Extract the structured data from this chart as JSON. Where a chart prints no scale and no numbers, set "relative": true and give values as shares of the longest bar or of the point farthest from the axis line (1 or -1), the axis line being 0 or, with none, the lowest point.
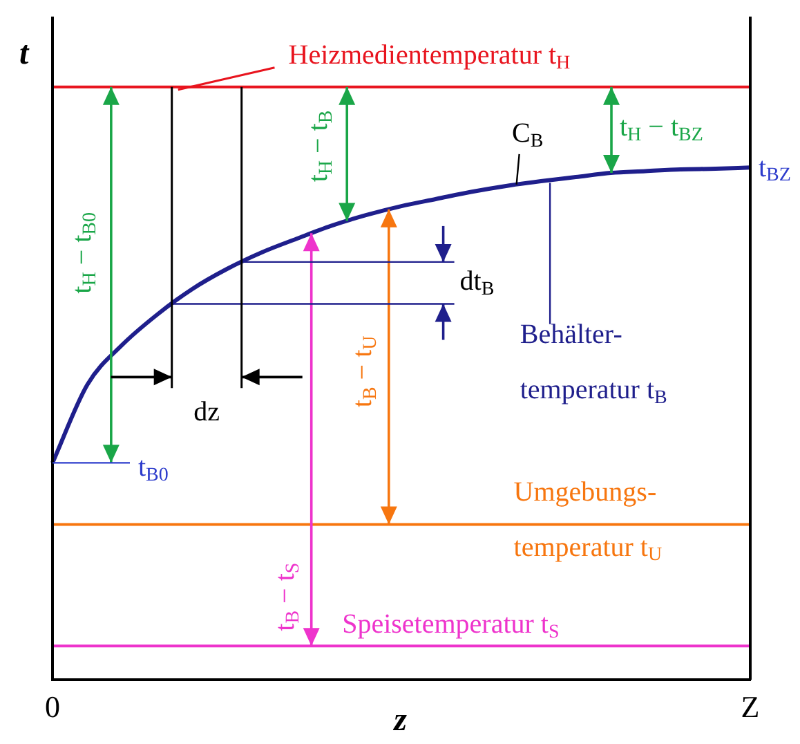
{
  "chart_data": {
    "type": "line",
    "xlabel": "z",
    "ylabel": "t",
    "relative": true,
    "grid": false,
    "marker": "none",
    "line_style": "solid",
    "categories": [
      "0",
      null,
      null,
      null,
      null,
      null,
      null,
      null,
      null,
      null,
      null,
      null,
      null,
      null,
      null,
      null,
      null,
      null,
      null,
      null,
      "Z"
    ],
    "series": [
      {
        "name": "Heizmedientemperatur t$_{H}$",
        "color": "#e8141e",
        "values": [
          1,
          1,
          1,
          1,
          1,
          1,
          1,
          1,
          1,
          1,
          1,
          1,
          1,
          1,
          1,
          1,
          1,
          1,
          1,
          1,
          1
        ]
      },
      {
        "name": "Behälter-temperatur t$_{B}$",
        "color": "#1f1f8c",
        "values": [
          0.366,
          0.498,
          0.565,
          0.616,
          0.659,
          0.693,
          0.721,
          0.744,
          0.766,
          0.784,
          0.799,
          0.811,
          0.823,
          0.833,
          0.841,
          0.848,
          0.855,
          0.858,
          0.861,
          0.862,
          0.864
        ]
      },
      {
        "name": "Umgebungs-temperatur t$_{U}$",
        "color": "#f7760f",
        "values": [
          0.262,
          0.262,
          0.262,
          0.262,
          0.262,
          0.262,
          0.262,
          0.262,
          0.262,
          0.262,
          0.262,
          0.262,
          0.262,
          0.262,
          0.262,
          0.262,
          0.262,
          0.262,
          0.262,
          0.262,
          0.262
        ]
      },
      {
        "name": "Speisetemperatur t$_{S}$",
        "color": "#ee33cc",
        "values": [
          0.057,
          0.057,
          0.057,
          0.057,
          0.057,
          0.057,
          0.057,
          0.057,
          0.057,
          0.057,
          0.057,
          0.057,
          0.057,
          0.057,
          0.057,
          0.057,
          0.057,
          0.057,
          0.057,
          0.057,
          0.057
        ]
      }
    ],
    "annotations": [
      "t$_{H}$ − t$_{B0}$",
      "t$_{H}$ − t$_{B}$",
      "t$_{H}$ − t$_{BZ}$",
      "t$_{B}$ − t$_{U}$",
      "t$_{B}$ − t$_{S}$",
      "dt$_{B}$",
      "dz",
      "C$_{B}$",
      {
        "text": "t$_{B0}$",
        "x": "0",
        "y": 0.366
      },
      {
        "text": "t$_{BZ}$",
        "x": "Z",
        "y": 0.862
      }
    ]
  }
}
